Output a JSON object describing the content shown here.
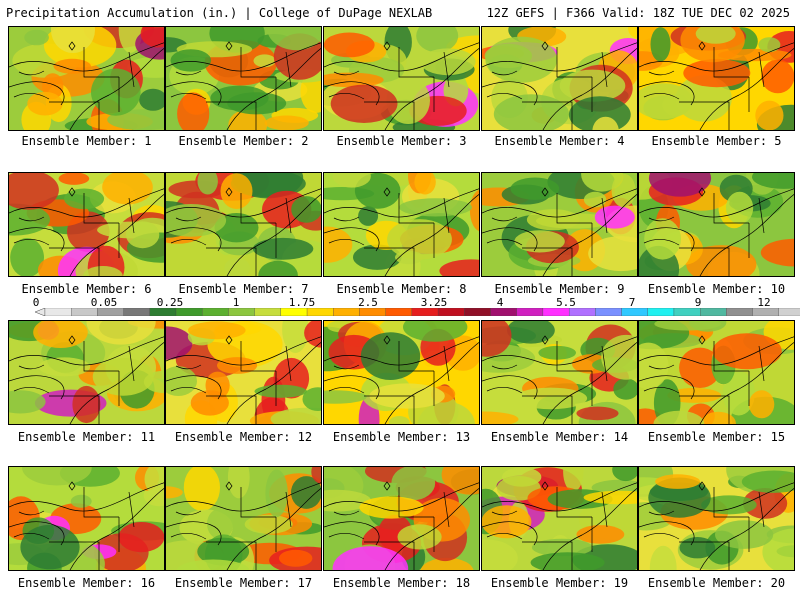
{
  "header": {
    "left": "Precipitation Accumulation (in.) | College of DuPage NEXLAB",
    "right": "12Z GEFS | F366 Valid: 18Z TUE DEC 02 2025"
  },
  "members": [
    "Ensemble Member: 1",
    "Ensemble Member: 2",
    "Ensemble Member: 3",
    "Ensemble Member: 4",
    "Ensemble Member: 5",
    "Ensemble Member: 6",
    "Ensemble Member: 7",
    "Ensemble Member: 8",
    "Ensemble Member: 9",
    "Ensemble Member: 10",
    "Ensemble Member: 11",
    "Ensemble Member: 12",
    "Ensemble Member: 13",
    "Ensemble Member: 14",
    "Ensemble Member: 15",
    "Ensemble Member: 16",
    "Ensemble Member: 17",
    "Ensemble Member: 18",
    "Ensemble Member: 19",
    "Ensemble Member: 20"
  ],
  "scale": {
    "labels": [
      "0",
      "0.05",
      "0.25",
      "1",
      "1.75",
      "2.5",
      "3.25",
      "4",
      "5.5",
      "7",
      "9",
      "12"
    ],
    "colors": [
      "#e8e8e8",
      "#c8c8c8",
      "#a0a0a0",
      "#787878",
      "#2e7d32",
      "#3f9a2c",
      "#5cb030",
      "#8cc63f",
      "#c6dd3c",
      "#ffff00",
      "#ffd700",
      "#ffb000",
      "#ff8c00",
      "#ff5a00",
      "#e61e1e",
      "#c01020",
      "#901028",
      "#a0106e",
      "#d020c0",
      "#ff30ff",
      "#b070ff",
      "#7a90ff",
      "#30c8ff",
      "#20f0f0",
      "#40d0c0",
      "#50b8a0",
      "#909090",
      "#b0b0b0",
      "#d0d0d0"
    ]
  },
  "panel_palette": {
    "base": [
      "#9ccc3c",
      "#8cc63f",
      "#bcd83c",
      "#e8e03c",
      "#ffd700",
      "#c6dd3c",
      "#c0d835",
      "#b4dc3c"
    ],
    "wet": [
      "#ffb000",
      "#ff8c00",
      "#ff5a00",
      "#e61e1e",
      "#d03020"
    ],
    "very_wet": [
      "#a0106e",
      "#d020c0",
      "#ff30ff"
    ],
    "dry": [
      "#3f9a2c",
      "#2e7d32",
      "#5cb030"
    ]
  }
}
